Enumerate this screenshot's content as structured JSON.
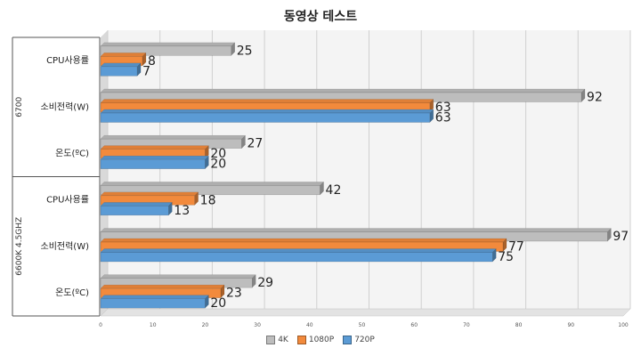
{
  "chart_data": {
    "type": "bar",
    "orientation": "horizontal",
    "title": "동영상 테스트",
    "groups": [
      {
        "name": "6700",
        "categories": [
          "CPU사용률",
          "소비전력(W)",
          "온도(ºC)"
        ]
      },
      {
        "name": "6600K 4.5GHZ",
        "categories": [
          "CPU사용률",
          "소비전력(W)",
          "온도(ºC)"
        ]
      }
    ],
    "series": [
      {
        "name": "4K",
        "color": "#bdbdbd",
        "values": [
          25,
          92,
          27,
          42,
          97,
          29
        ]
      },
      {
        "name": "1080P",
        "color": "#f28a3c",
        "values": [
          8,
          63,
          20,
          18,
          77,
          23
        ]
      },
      {
        "name": "720P",
        "color": "#5b9bd5",
        "values": [
          7,
          63,
          20,
          13,
          75,
          20
        ]
      }
    ],
    "xlim": [
      0,
      100
    ],
    "xticks": [
      0,
      10,
      20,
      30,
      40,
      50,
      60,
      70,
      80,
      90,
      100
    ],
    "grid": true,
    "legend_position": "bottom"
  }
}
